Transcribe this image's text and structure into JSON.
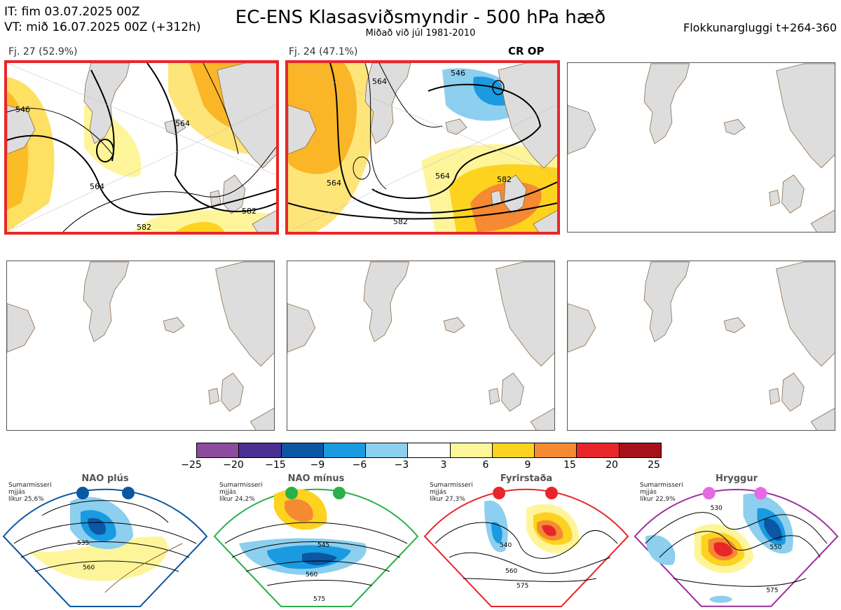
{
  "header": {
    "it_line": "IT: fim 03.07.2025 00Z",
    "vt_line": "VT: mið 16.07.2025 00Z  (+312h)",
    "title": "EC-ENS Klasasviðsmyndir - 500 hPa hæð",
    "subtitle": "Miðað við júl 1981-2010",
    "window": "Flokkunargluggi t+264-360"
  },
  "clusters": [
    {
      "label": "Fj. 27 (52.9%)",
      "contours": [
        "546",
        "564",
        "564",
        "582",
        "582"
      ]
    },
    {
      "label": "Fj. 24 (47.1%)",
      "contours": [
        "546",
        "564",
        "564",
        "564",
        "582",
        "582"
      ],
      "marker": "CR OP"
    }
  ],
  "colorbar": {
    "ticks": [
      "−25",
      "−20",
      "−15",
      "−9",
      "−6",
      "−3",
      "3",
      "6",
      "9",
      "15",
      "20",
      "25"
    ],
    "colors": [
      "#8c4b9c",
      "#4a2f92",
      "#0b57a3",
      "#1a9ae0",
      "#8ccfee",
      "#ffffff",
      "#fef59b",
      "#fdd31f",
      "#f58a32",
      "#e8262a",
      "#a71219"
    ]
  },
  "regimes": [
    {
      "name": "NAO plús",
      "season": "Sumarmisseri",
      "smooth": "mjjás",
      "prob": "líkur 25,6%",
      "color": "#0b57a3",
      "contours": [
        "535",
        "560"
      ]
    },
    {
      "name": "NAO mínus",
      "season": "Sumarmisseri",
      "smooth": "mjjás",
      "prob": "líkur 24,2%",
      "color": "#2ab04b",
      "contours": [
        "545",
        "560",
        "575"
      ]
    },
    {
      "name": "Fyrirstaða",
      "season": "Sumarmisseri",
      "smooth": "mjjás",
      "prob": "líkur 27,3%",
      "color": "#e8262a",
      "contours": [
        "540",
        "560",
        "575"
      ]
    },
    {
      "name": "Hryggur",
      "season": "Sumarmisseri",
      "smooth": "mjjás",
      "prob": "líkur 22,9%",
      "color": "#9b2f9e",
      "contours": [
        "530",
        "550",
        "575"
      ]
    }
  ]
}
